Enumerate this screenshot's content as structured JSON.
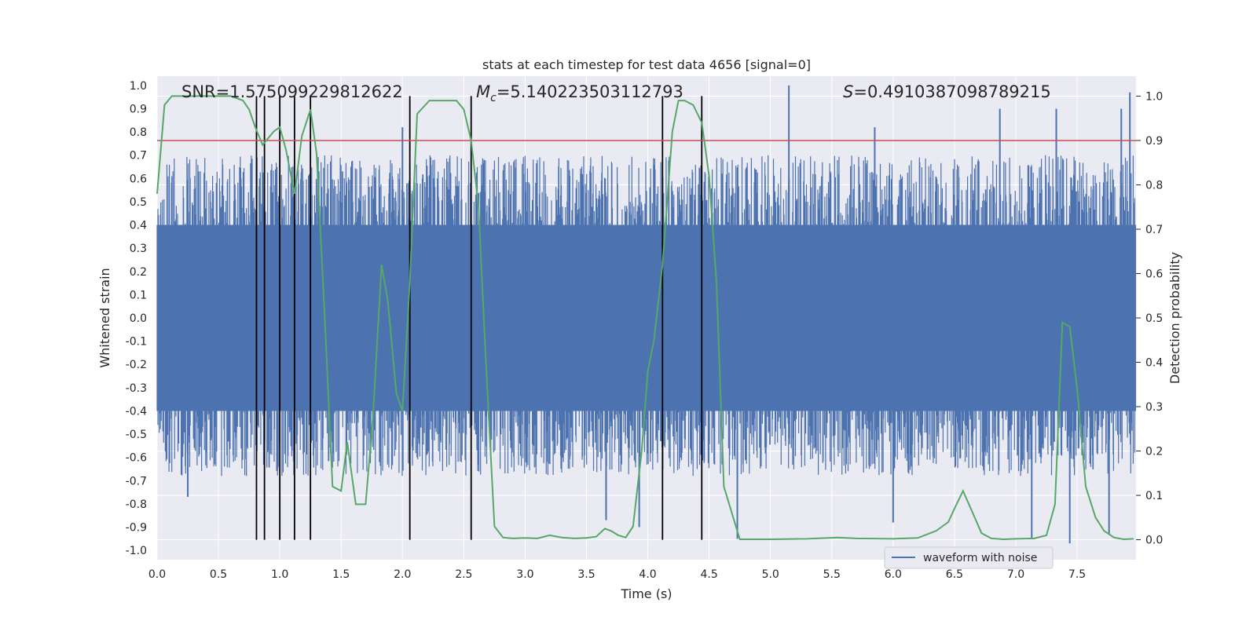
{
  "chart_data": {
    "type": "line",
    "title": "stats at each timestep for test data 4656 [signal=0]",
    "xlabel": "Time (s)",
    "ylabel": "Whitened strain",
    "y2label": "Detection probability",
    "xlim": [
      0.0,
      7.98
    ],
    "ylim": [
      -1.04,
      1.04
    ],
    "y2lim": [
      -0.045,
      1.045
    ],
    "xticks": [
      0.0,
      0.5,
      1.0,
      1.5,
      2.0,
      2.5,
      3.0,
      3.5,
      4.0,
      4.5,
      5.0,
      5.5,
      6.0,
      6.5,
      7.0,
      7.5
    ],
    "yticks": [
      -1.0,
      -0.9,
      -0.8,
      -0.7,
      -0.6,
      -0.5,
      -0.4,
      -0.3,
      -0.2,
      -0.1,
      0.0,
      0.1,
      0.2,
      0.3,
      0.4,
      0.5,
      0.6,
      0.7,
      0.8,
      0.9,
      1.0
    ],
    "y2ticks": [
      0.0,
      0.1,
      0.2,
      0.3,
      0.4,
      0.5,
      0.6,
      0.7,
      0.8,
      0.9,
      1.0
    ],
    "annotations": {
      "snr": "SNR=1.575099229812622",
      "mc_symbol": "M",
      "mc_sub": "c",
      "mc_value": "=5.140223503112793",
      "s_symbol": "S",
      "s_value": "=0.4910387098789215"
    },
    "legend": {
      "label": "waveform with noise",
      "position": "lower-right"
    },
    "threshold": {
      "y2": 0.9,
      "color": "#c44e52"
    },
    "colors": {
      "waveform": "#4c72b0",
      "probability": "#55a868",
      "vlines": "#000000",
      "bg": "#eaeaf2",
      "grid": "#ffffff"
    },
    "vlines": [
      0.81,
      0.875,
      1.0,
      1.12,
      1.25,
      2.06,
      2.56,
      4.12,
      4.44
    ],
    "waveform": {
      "description_samples": 2400,
      "band_upper": 0.4,
      "band_lower": -0.4,
      "spikes": [
        {
          "x": 5.15,
          "y": 1.0
        },
        {
          "x": 6.87,
          "y": 0.9
        },
        {
          "x": 7.93,
          "y": 0.97
        },
        {
          "x": 7.86,
          "y": 0.9
        },
        {
          "x": 7.33,
          "y": 0.9
        },
        {
          "x": 2.0,
          "y": 0.82
        },
        {
          "x": 5.85,
          "y": 0.82
        },
        {
          "x": 0.25,
          "y": -0.77
        },
        {
          "x": 3.66,
          "y": -0.87
        },
        {
          "x": 4.73,
          "y": -0.95
        },
        {
          "x": 7.13,
          "y": -0.95
        },
        {
          "x": 7.44,
          "y": -0.97
        },
        {
          "x": 7.76,
          "y": -0.93
        },
        {
          "x": 6.0,
          "y": -0.88
        },
        {
          "x": 3.93,
          "y": -0.9
        }
      ]
    },
    "probability": {
      "x": [
        0.0,
        0.06,
        0.12,
        0.2,
        0.4,
        0.6,
        0.7,
        0.75,
        0.8,
        0.86,
        0.95,
        1.0,
        1.05,
        1.12,
        1.18,
        1.25,
        1.3,
        1.37,
        1.43,
        1.5,
        1.55,
        1.62,
        1.7,
        1.76,
        1.83,
        1.88,
        1.95,
        2.0,
        2.06,
        2.12,
        2.22,
        2.3,
        2.4,
        2.44,
        2.5,
        2.56,
        2.62,
        2.68,
        2.75,
        2.82,
        2.9,
        3.0,
        3.1,
        3.2,
        3.3,
        3.4,
        3.5,
        3.58,
        3.65,
        3.7,
        3.76,
        3.82,
        3.88,
        3.95,
        4.0,
        4.05,
        4.12,
        4.2,
        4.25,
        4.3,
        4.37,
        4.44,
        4.5,
        4.56,
        4.62,
        4.75,
        5.0,
        5.3,
        5.55,
        5.7,
        6.0,
        6.2,
        6.35,
        6.45,
        6.5,
        6.57,
        6.65,
        6.72,
        6.8,
        6.9,
        7.0,
        7.15,
        7.25,
        7.32,
        7.38,
        7.44,
        7.5,
        7.57,
        7.65,
        7.72,
        7.8,
        7.88,
        7.96
      ],
      "y": [
        0.78,
        0.98,
        1.0,
        1.0,
        1.0,
        1.0,
        0.99,
        0.97,
        0.93,
        0.89,
        0.92,
        0.93,
        0.88,
        0.78,
        0.91,
        0.97,
        0.87,
        0.48,
        0.12,
        0.11,
        0.22,
        0.08,
        0.08,
        0.28,
        0.62,
        0.54,
        0.33,
        0.29,
        0.58,
        0.96,
        0.99,
        0.99,
        0.99,
        0.99,
        0.97,
        0.9,
        0.75,
        0.4,
        0.03,
        0.005,
        0.003,
        0.004,
        0.003,
        0.01,
        0.005,
        0.003,
        0.004,
        0.007,
        0.025,
        0.02,
        0.01,
        0.005,
        0.03,
        0.2,
        0.38,
        0.45,
        0.62,
        0.92,
        0.99,
        0.99,
        0.98,
        0.94,
        0.82,
        0.58,
        0.12,
        0.001,
        0.001,
        0.002,
        0.005,
        0.003,
        0.002,
        0.004,
        0.02,
        0.04,
        0.07,
        0.11,
        0.06,
        0.015,
        0.003,
        0.001,
        0.002,
        0.003,
        0.01,
        0.08,
        0.49,
        0.48,
        0.34,
        0.12,
        0.05,
        0.02,
        0.005,
        0.001,
        0.002
      ]
    }
  }
}
